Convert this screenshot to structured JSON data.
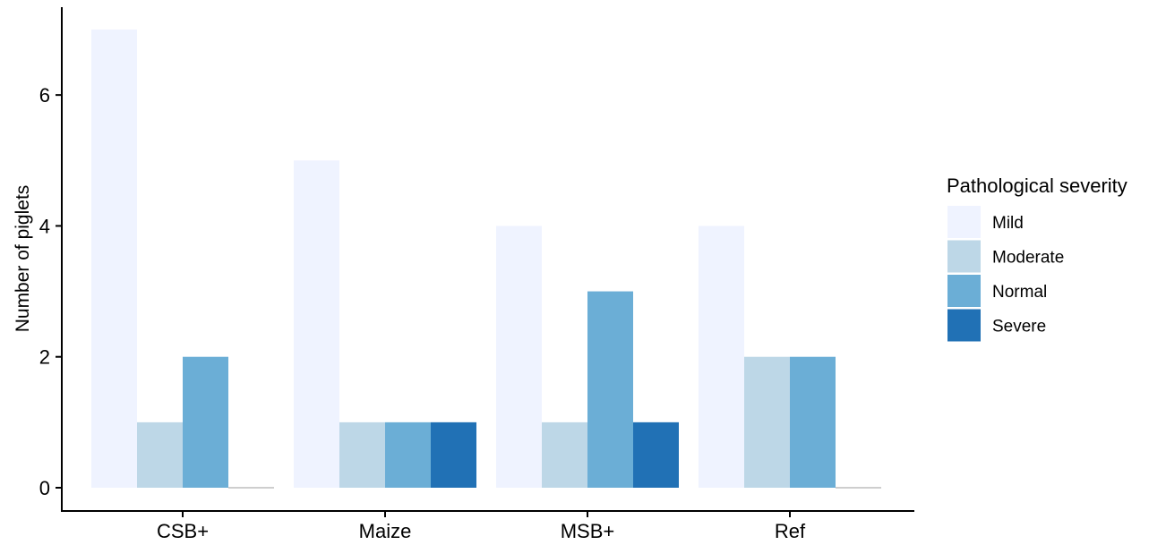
{
  "chart_data": {
    "type": "bar",
    "xlabel": "",
    "ylabel": "Number of piglets",
    "ylim": [
      0,
      7
    ],
    "yticks": [
      0,
      2,
      4,
      6
    ],
    "grid": false,
    "legend_position": "right",
    "legend_title": "Pathological severity",
    "categories": [
      "CSB+",
      "Maize",
      "MSB+",
      "Ref"
    ],
    "series": [
      {
        "name": "Mild",
        "color": "#eff3ff",
        "values": [
          7,
          5,
          4,
          4
        ]
      },
      {
        "name": "Moderate",
        "color": "#bdd7e7",
        "values": [
          1,
          1,
          1,
          2
        ]
      },
      {
        "name": "Normal",
        "color": "#6baed6",
        "values": [
          2,
          1,
          3,
          2
        ]
      },
      {
        "name": "Severe",
        "color": "#2171b5",
        "values": [
          0,
          1,
          1,
          0
        ]
      }
    ]
  }
}
